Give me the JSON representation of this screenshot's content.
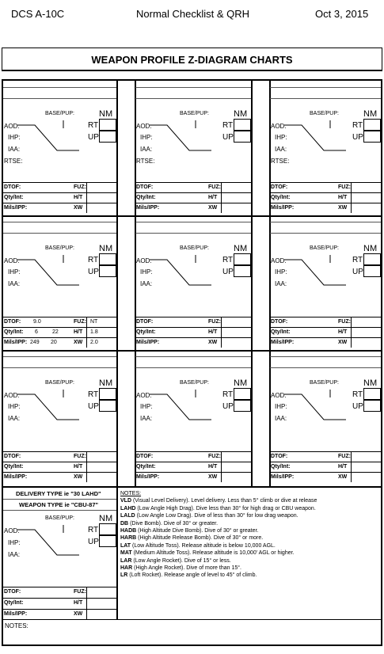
{
  "header": {
    "left": "DCS A-10C",
    "center": "Normal Checklist & QRH",
    "right": "Oct 3, 2015"
  },
  "title": "WEAPON PROFILE Z-DIAGRAM CHARTS",
  "labels": {
    "base_pup": "BASE/PUP:",
    "nm": "NM",
    "rt": "RT",
    "up": "UP",
    "aod": "AOD:",
    "ihp": "IHP:",
    "iaa": "IAA:",
    "rtse": "RTSE:",
    "dtof": "DTOF:",
    "qty_int": "Qty/Int:",
    "mils_ipp": "Mils/IPP:",
    "fuz": "FUZ:",
    "ht": "H/T",
    "xw": "XW"
  },
  "filled": {
    "dtof": "9.0",
    "qty": "6",
    "int": "22",
    "mils": "249",
    "ipp": "20",
    "nt": "NT",
    "ht": "1.8",
    "xw": "2.0"
  },
  "example": {
    "delivery": "DELIVERY TYPE ie \"30 LAHD\"",
    "weapon": "WEAPON TYPE ie \"CBU-87\""
  },
  "notes_heading": "NOTES:",
  "notes_footer": "NOTES:",
  "notes": [
    {
      "k": "VLD",
      "t": " (Visual Level Delivery). Level delivery. Less than 5° climb or dive at release"
    },
    {
      "k": "LAHD",
      "t": " (Low Angle High Drag). Dive less than 30° for high drag or CBU weapon."
    },
    {
      "k": "LALD",
      "t": " (Low Angle Low Drag). Dive of less than 30° for low drag weapon."
    },
    {
      "k": "DB",
      "t": " (Dive Bomb). Dive of 30° or greater."
    },
    {
      "k": "HADB",
      "t": " (High Altitude Dive Bomb). Dive of 30° or greater."
    },
    {
      "k": "HARB",
      "t": " (High Altitude Release Bomb). Dive of 30° or more."
    },
    {
      "k": "LAT",
      "t": " (Low Altitude Toss). Release altitude is below 10,000 AGL."
    },
    {
      "k": "MAT",
      "t": " (Medium Altitude Toss). Release altitude is 10,000' AGL or higher."
    },
    {
      "k": "LAR",
      "t": " (Low Angle Rocket). Dive of 15° or less."
    },
    {
      "k": "HAR",
      "t": " (High Angle Rocket). Dive of more than 15°."
    },
    {
      "k": "LR",
      "t": " (Loft Rocket). Release angle of level to 45° of climb."
    }
  ]
}
